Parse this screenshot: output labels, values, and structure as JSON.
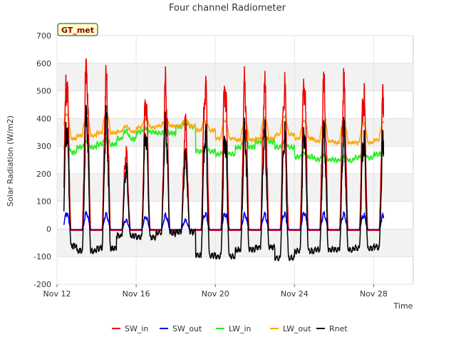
{
  "chart_data": {
    "type": "line",
    "title": "Four channel Radiometer",
    "xlabel": "Time",
    "ylabel": "Solar Radiation (W/m2)",
    "badge": "GT_met",
    "ylim": [
      -200,
      700
    ],
    "xlim": [
      0,
      18
    ],
    "yticks": [
      -200,
      -100,
      0,
      100,
      200,
      300,
      400,
      500,
      600,
      700
    ],
    "xticks": [
      {
        "value": 0,
        "label": "Nov 12"
      },
      {
        "value": 4,
        "label": "Nov 16"
      },
      {
        "value": 8,
        "label": "Nov 20"
      },
      {
        "value": 12,
        "label": "Nov 24"
      },
      {
        "value": 16,
        "label": "Nov 28"
      }
    ],
    "grid": true,
    "legend_position": "bottom",
    "days_start": "Nov 12",
    "daily": {
      "sw_in_peak": [
        575,
        630,
        585,
        295,
        510,
        555,
        400,
        565,
        570,
        560,
        545,
        545,
        570,
        555,
        545,
        530,
        520
      ],
      "sw_out_peak": [
        62,
        65,
        60,
        35,
        50,
        55,
        35,
        62,
        62,
        58,
        58,
        60,
        65,
        60,
        58,
        56,
        55
      ],
      "lw_in_night": [
        282,
        300,
        310,
        330,
        355,
        350,
        375,
        285,
        275,
        300,
        320,
        300,
        265,
        255,
        252,
        262,
        275
      ],
      "lw_in_day": [
        320,
        320,
        330,
        360,
        370,
        360,
        390,
        300,
        290,
        330,
        340,
        320,
        280,
        270,
        265,
        285,
        285
      ],
      "lw_out_night": [
        330,
        340,
        350,
        355,
        370,
        375,
        375,
        360,
        330,
        325,
        330,
        345,
        330,
        320,
        315,
        315,
        325
      ],
      "lw_out_day": [
        420,
        410,
        420,
        375,
        400,
        395,
        400,
        390,
        395,
        390,
        405,
        410,
        395,
        395,
        385,
        385,
        390
      ],
      "rnet_peak": [
        400,
        460,
        440,
        235,
        380,
        400,
        280,
        390,
        380,
        380,
        375,
        370,
        390,
        380,
        375,
        360,
        355
      ],
      "rnet_night": [
        -55,
        -75,
        -65,
        -20,
        -25,
        -10,
        -5,
        -90,
        -95,
        -70,
        -60,
        -100,
        -75,
        -70,
        -70,
        -65,
        -60
      ]
    },
    "series": [
      {
        "name": "SW_in",
        "color": "#ee0000"
      },
      {
        "name": "SW_out",
        "color": "#0000ee"
      },
      {
        "name": "LW_in",
        "color": "#22ee22"
      },
      {
        "name": "LW_out",
        "color": "#ffa500"
      },
      {
        "name": "Rnet",
        "color": "#000000"
      }
    ]
  }
}
